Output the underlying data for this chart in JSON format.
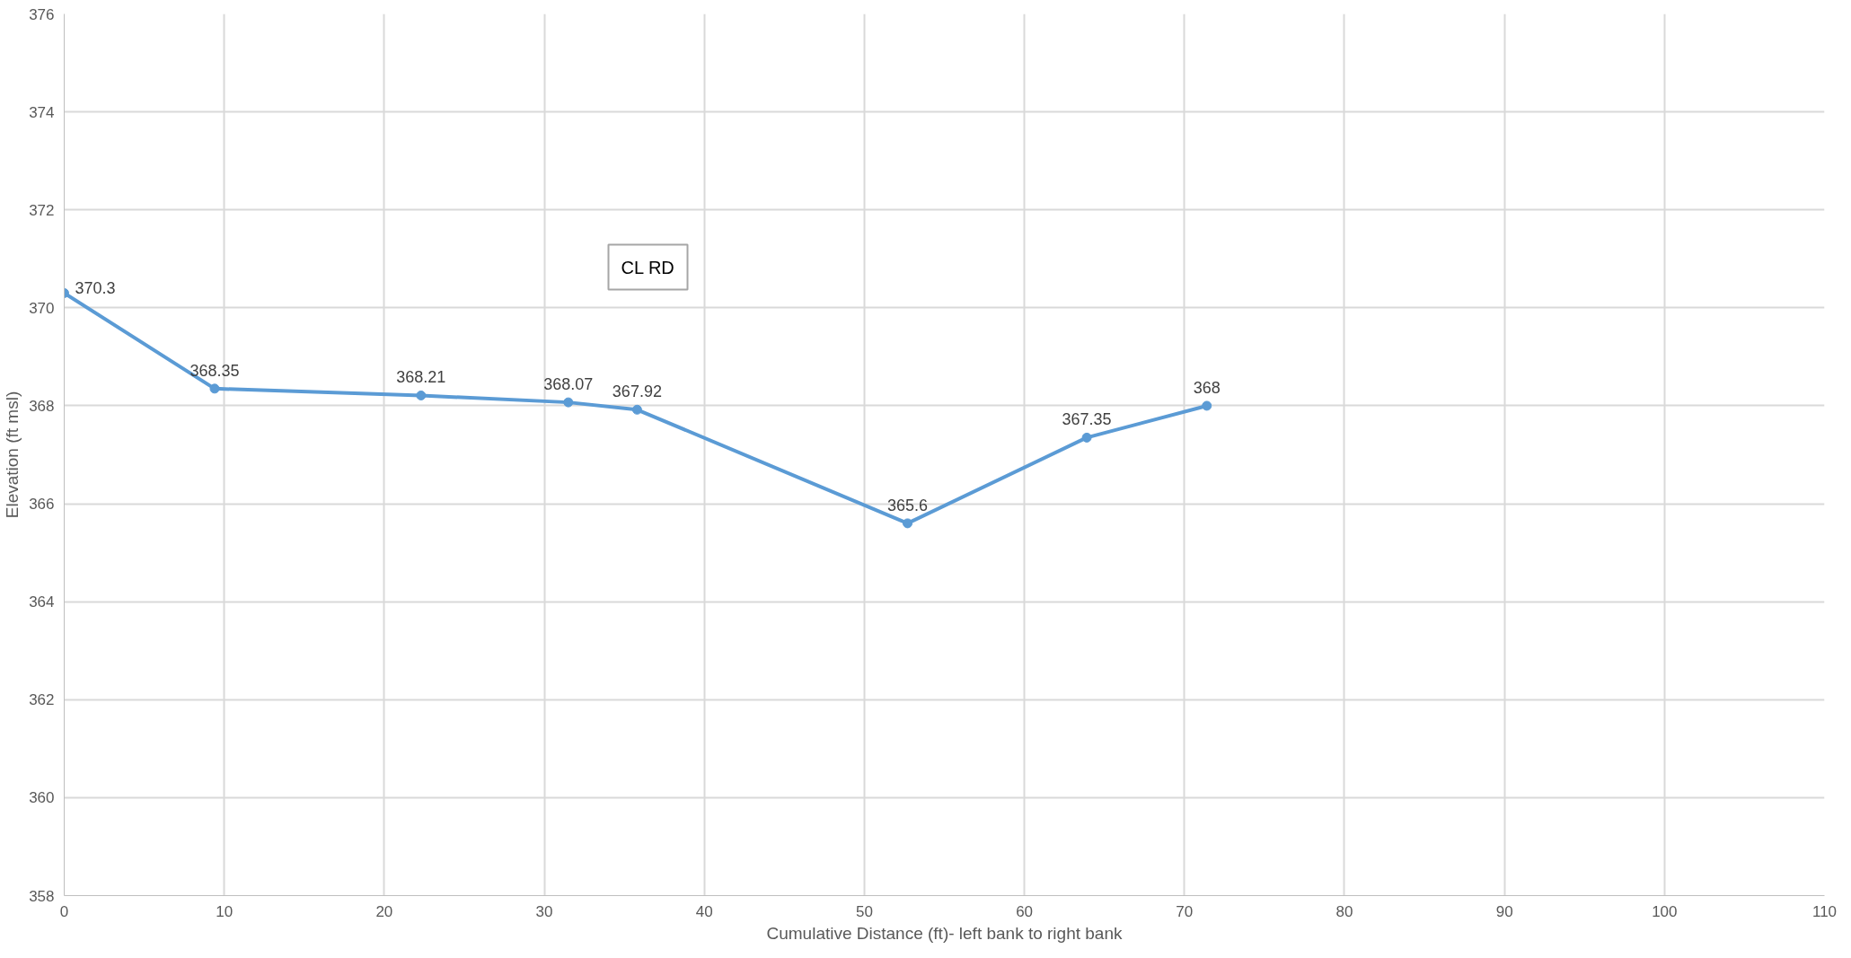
{
  "chart_data": {
    "type": "line",
    "xlabel": "Cumulative Distance (ft)- left bank to right bank",
    "ylabel": "Elevation (ft msl)",
    "x": [
      0,
      9.4,
      22.3,
      31.5,
      35.8,
      52.7,
      63.9,
      71.4
    ],
    "series": [
      {
        "color": "#5b9bd5",
        "values": [
          370.3,
          368.35,
          368.21,
          368.07,
          367.92,
          365.6,
          367.35,
          368
        ]
      }
    ],
    "xlim": [
      0,
      110
    ],
    "xticks": [
      0,
      10,
      20,
      30,
      40,
      50,
      60,
      70,
      80,
      90,
      100,
      110
    ],
    "ylim": [
      358,
      376
    ],
    "yticks": [
      358,
      360,
      362,
      364,
      366,
      368,
      370,
      372,
      374,
      376
    ],
    "grid": true,
    "marker": "circle",
    "data_labels": true,
    "annotations": [
      "CL RD"
    ]
  }
}
